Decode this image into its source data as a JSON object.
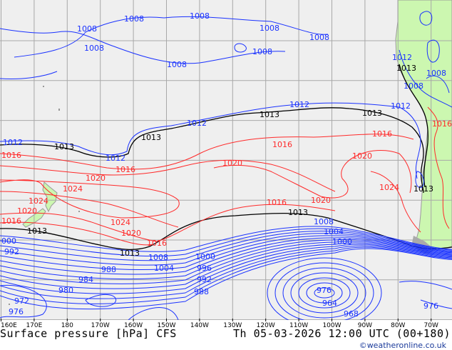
{
  "title": "Surface pressure [hPa] CFS",
  "datetime": "Th 05-03-2026 12:00 UTC (00+180)",
  "credit": "©weatheronline.co.uk",
  "colors": {
    "sea": "#efefef",
    "land": "#ccf7b0",
    "grid": "#a8a8a8",
    "low": "#1a32ff",
    "high": "#ff2a2a",
    "ref": "#000000",
    "coast": "#999999"
  },
  "longitude_ticks": [
    "160E",
    "170E",
    "180",
    "170W",
    "160W",
    "150W",
    "140W",
    "130W",
    "120W",
    "110W",
    "100W",
    "90W",
    "80W",
    "70W"
  ],
  "isobar_labels": {
    "blue": [
      "1008",
      "1008",
      "1008",
      "1008",
      "1008",
      "1008",
      "1008",
      "1008",
      "1012",
      "1008",
      "1008",
      "1012",
      "1012",
      "1012",
      "1012",
      "1012",
      "1008",
      "1004",
      "1000",
      "1008",
      "1004",
      "1000",
      "996",
      "992",
      "988",
      "988",
      "984",
      "980",
      "000",
      "992",
      "972",
      "976",
      "976",
      "976",
      "964",
      "968"
    ],
    "black": [
      "1013",
      "1013",
      "1013",
      "1013",
      "1013",
      "1013",
      "1013",
      "1013",
      "1013"
    ],
    "red": [
      "1016",
      "1016",
      "1020",
      "1024",
      "1016",
      "1016",
      "1016",
      "1020",
      "1020",
      "1020",
      "1024",
      "1016",
      "1024",
      "1024",
      "1020",
      "1016",
      "1020",
      "1016"
    ]
  }
}
